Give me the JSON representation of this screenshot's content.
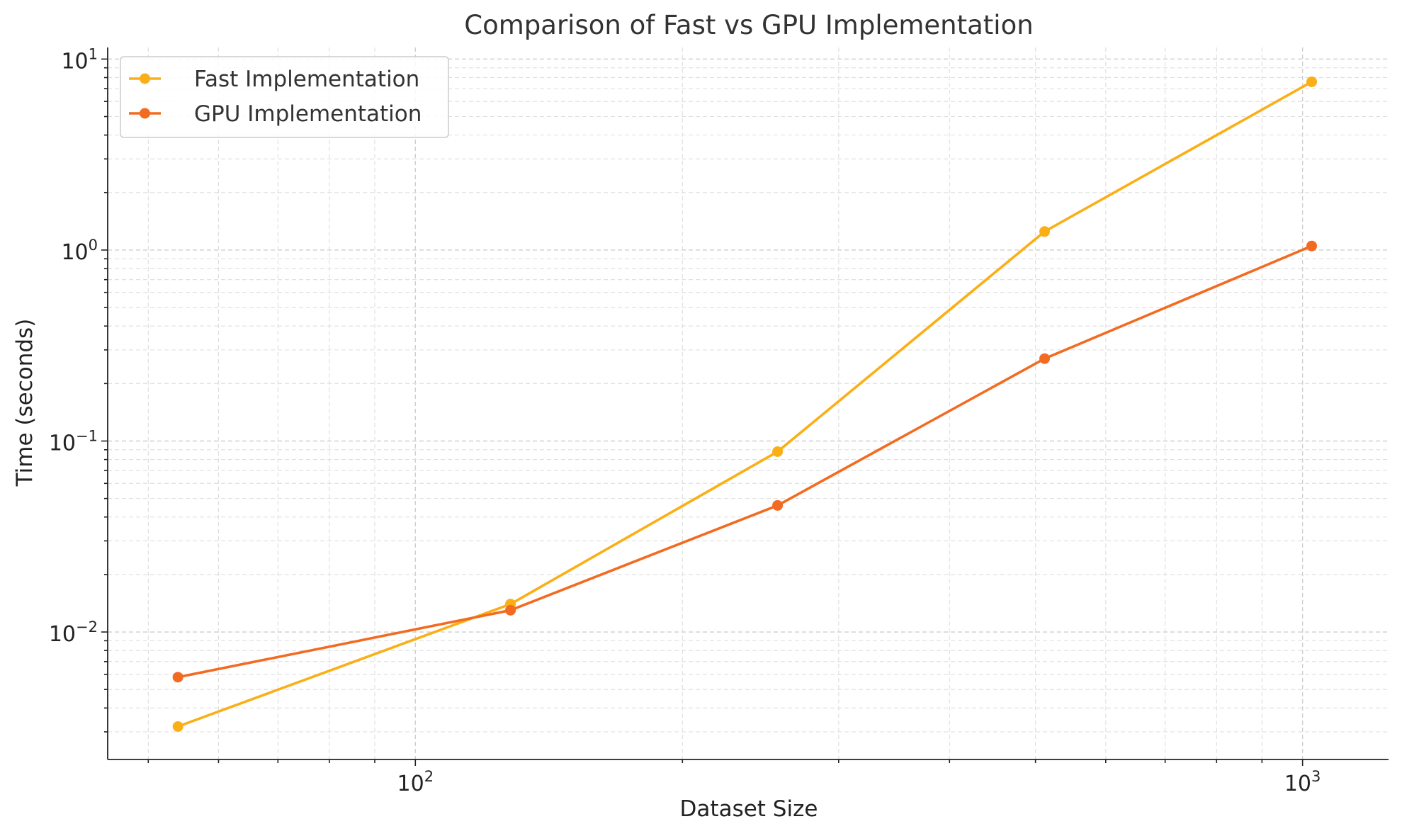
{
  "chart_data": {
    "type": "line",
    "title": "Comparison of Fast vs GPU Implementation",
    "xlabel": "Dataset Size",
    "ylabel": "Time (seconds)",
    "xscale": "log",
    "yscale": "log",
    "xlim": [
      45,
      1250
    ],
    "ylim": [
      0.00215,
      11.5
    ],
    "x_ticks": [
      {
        "value": 100,
        "base": "10",
        "exp": "2"
      },
      {
        "value": 1000,
        "base": "10",
        "exp": "3"
      }
    ],
    "y_ticks": [
      {
        "value": 0.01,
        "base": "10",
        "exp": "−2"
      },
      {
        "value": 0.1,
        "base": "10",
        "exp": "−1"
      },
      {
        "value": 1,
        "base": "10",
        "exp": "0"
      },
      {
        "value": 10,
        "base": "10",
        "exp": "1"
      }
    ],
    "grid": true,
    "legend_position": "top-left",
    "x": [
      54,
      128,
      256,
      512,
      1024
    ],
    "series": [
      {
        "name": "Fast Implementation",
        "color": "#FBAF17",
        "values": [
          0.0032,
          0.014,
          0.088,
          1.25,
          7.6
        ]
      },
      {
        "name": "GPU Implementation",
        "color": "#F26B21",
        "values": [
          0.0058,
          0.013,
          0.046,
          0.27,
          1.05
        ]
      }
    ]
  }
}
